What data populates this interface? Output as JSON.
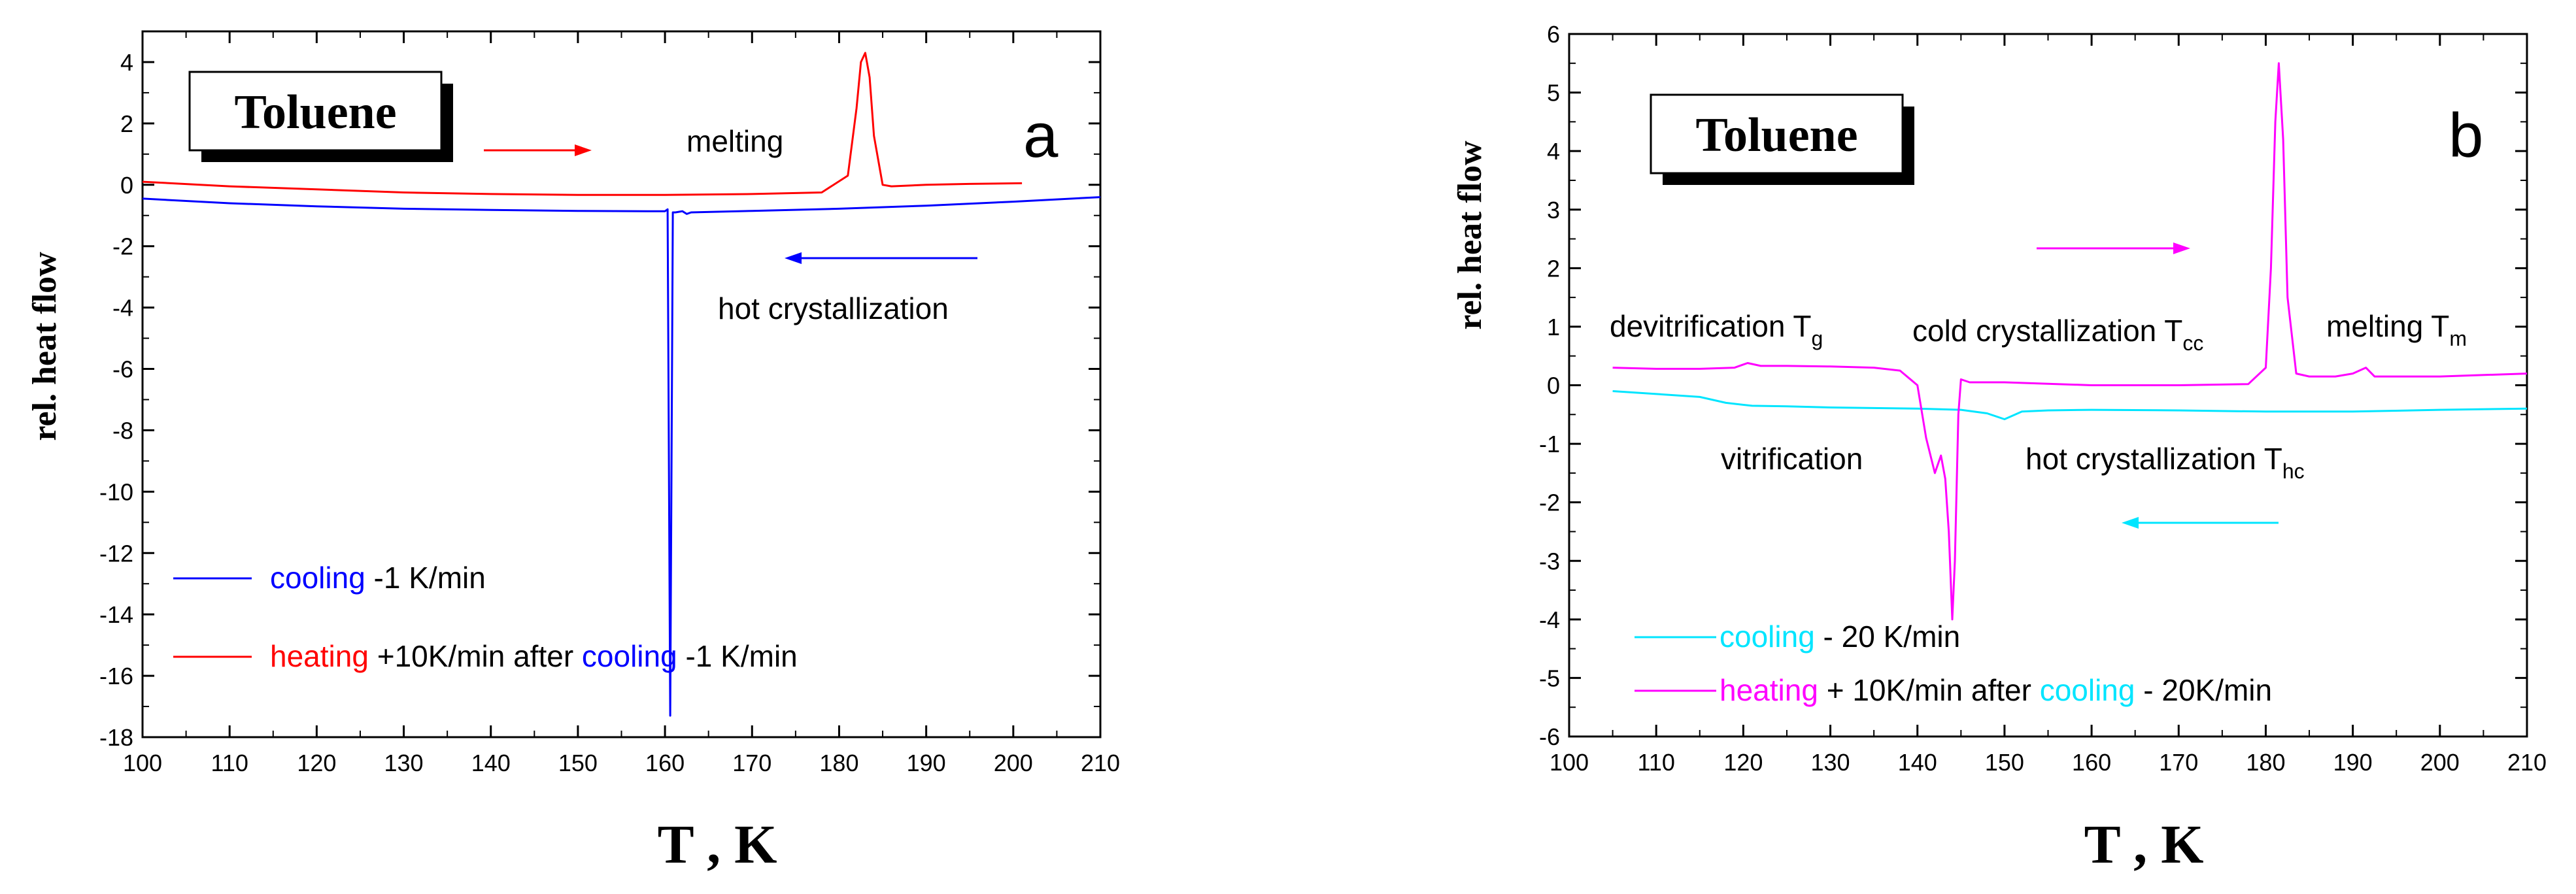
{
  "chart_data": [
    {
      "id": "a",
      "type": "line",
      "panel_label": "a",
      "title_box": "Toluene",
      "xlabel": "T , K",
      "ylabel": "rel. heat flow",
      "xlim": [
        100,
        210
      ],
      "ylim": [
        -18,
        5
      ],
      "xticks": [
        "100",
        "110",
        "120",
        "130",
        "140",
        "150",
        "160",
        "170",
        "180",
        "190",
        "200",
        "210"
      ],
      "yticks": [
        "4",
        "2",
        "0",
        "-2",
        "-4",
        "-6",
        "-8",
        "-10",
        "-12",
        "-14",
        "-16",
        "-18"
      ],
      "annotations": [
        "melting",
        "hot crystallization"
      ],
      "legend": [
        {
          "parts": [
            [
              "cooling",
              "#0000ff"
            ],
            [
              " -1 K/min",
              "#000000"
            ]
          ],
          "color": "#0000ff"
        },
        {
          "parts": [
            [
              "heating",
              "#ff0000"
            ],
            [
              " +10K/min after ",
              "#000000"
            ],
            [
              "cooling",
              "#0000ff"
            ],
            [
              " -1 K/min",
              "#000000"
            ]
          ],
          "color": "#ff0000"
        }
      ],
      "series": [
        {
          "name": "cooling -1 K/min",
          "color": "#0000ff",
          "x": [
            100,
            110,
            120,
            130,
            140,
            150,
            158,
            160,
            160.3,
            160.6,
            160.9,
            161.2,
            161.6,
            162,
            162.5,
            163,
            170,
            180,
            190,
            200,
            210
          ],
          "y": [
            -0.45,
            -0.6,
            -0.7,
            -0.78,
            -0.82,
            -0.85,
            -0.86,
            -0.86,
            -0.8,
            -17.3,
            -0.9,
            -0.9,
            -0.88,
            -0.86,
            -0.95,
            -0.9,
            -0.85,
            -0.78,
            -0.68,
            -0.55,
            -0.4
          ]
        },
        {
          "name": "heating +10K/min after cooling -1 K/min",
          "color": "#ff0000",
          "x": [
            100,
            110,
            120,
            130,
            140,
            150,
            160,
            170,
            178,
            181,
            182,
            182.5,
            183,
            183.5,
            184,
            185,
            186,
            190,
            195,
            201
          ],
          "y": [
            0.1,
            -0.05,
            -0.15,
            -0.25,
            -0.3,
            -0.33,
            -0.33,
            -0.3,
            -0.25,
            0.3,
            2.5,
            4.0,
            4.3,
            3.5,
            1.6,
            0.0,
            -0.05,
            0.0,
            0.03,
            0.05
          ]
        }
      ]
    },
    {
      "id": "b",
      "type": "line",
      "panel_label": "b",
      "title_box": "Toluene",
      "xlabel": "T , K",
      "ylabel": "rel. heat flow",
      "xlim": [
        100,
        210
      ],
      "ylim": [
        -6,
        6
      ],
      "xticks": [
        "100",
        "110",
        "120",
        "130",
        "140",
        "150",
        "160",
        "170",
        "180",
        "190",
        "200",
        "210"
      ],
      "yticks": [
        "6",
        "5",
        "4",
        "3",
        "2",
        "1",
        "0",
        "-1",
        "-2",
        "-3",
        "-4",
        "-5",
        "-6"
      ],
      "annotations": [
        {
          "text": "devitrification T",
          "sub": "g"
        },
        {
          "text": "cold crystallization T",
          "sub": "cc"
        },
        {
          "text": "melting T",
          "sub": "m"
        },
        {
          "text": "vitrification",
          "sub": ""
        },
        {
          "text": "hot crystallization T",
          "sub": "hc"
        }
      ],
      "legend": [
        {
          "parts": [
            [
              "cooling",
              "#00e5ff"
            ],
            [
              " - 20 K/min",
              "#000000"
            ]
          ],
          "color": "#00e5ff"
        },
        {
          "parts": [
            [
              "heating",
              "#ff00ff"
            ],
            [
              " + 10K/min after ",
              "#000000"
            ],
            [
              "cooling",
              "#00e5ff"
            ],
            [
              " - 20K/min",
              "#000000"
            ]
          ],
          "color": "#ff00ff"
        }
      ],
      "series": [
        {
          "name": "cooling - 20 K/min",
          "color": "#00e5ff",
          "x": [
            105,
            110,
            115,
            118,
            121,
            125,
            130,
            140,
            145,
            148,
            150,
            152,
            155,
            160,
            170,
            180,
            190,
            200,
            210
          ],
          "y": [
            -0.1,
            -0.15,
            -0.2,
            -0.3,
            -0.35,
            -0.36,
            -0.38,
            -0.4,
            -0.42,
            -0.48,
            -0.58,
            -0.45,
            -0.43,
            -0.42,
            -0.43,
            -0.45,
            -0.45,
            -0.42,
            -0.4
          ]
        },
        {
          "name": "heating + 10K/min after cooling - 20K/min",
          "color": "#ff00ff",
          "x": [
            105,
            110,
            115,
            119,
            120.5,
            122,
            125,
            130,
            135,
            138,
            140,
            141,
            142,
            142.7,
            143.2,
            143.6,
            144,
            144.3,
            144.7,
            145,
            146,
            150,
            160,
            170,
            178,
            180,
            180.6,
            181.1,
            181.5,
            182,
            182.5,
            183.5,
            185,
            188,
            190,
            191.5,
            192.5,
            195,
            200,
            210
          ],
          "y": [
            0.3,
            0.28,
            0.28,
            0.3,
            0.38,
            0.33,
            0.33,
            0.32,
            0.3,
            0.25,
            0.0,
            -0.9,
            -1.5,
            -1.2,
            -1.6,
            -2.5,
            -4.0,
            -3.0,
            -0.5,
            0.1,
            0.05,
            0.05,
            0.0,
            0.0,
            0.02,
            0.3,
            2.0,
            4.5,
            5.5,
            4.2,
            1.5,
            0.2,
            0.15,
            0.15,
            0.2,
            0.3,
            0.15,
            0.15,
            0.15,
            0.2
          ]
        }
      ]
    }
  ]
}
